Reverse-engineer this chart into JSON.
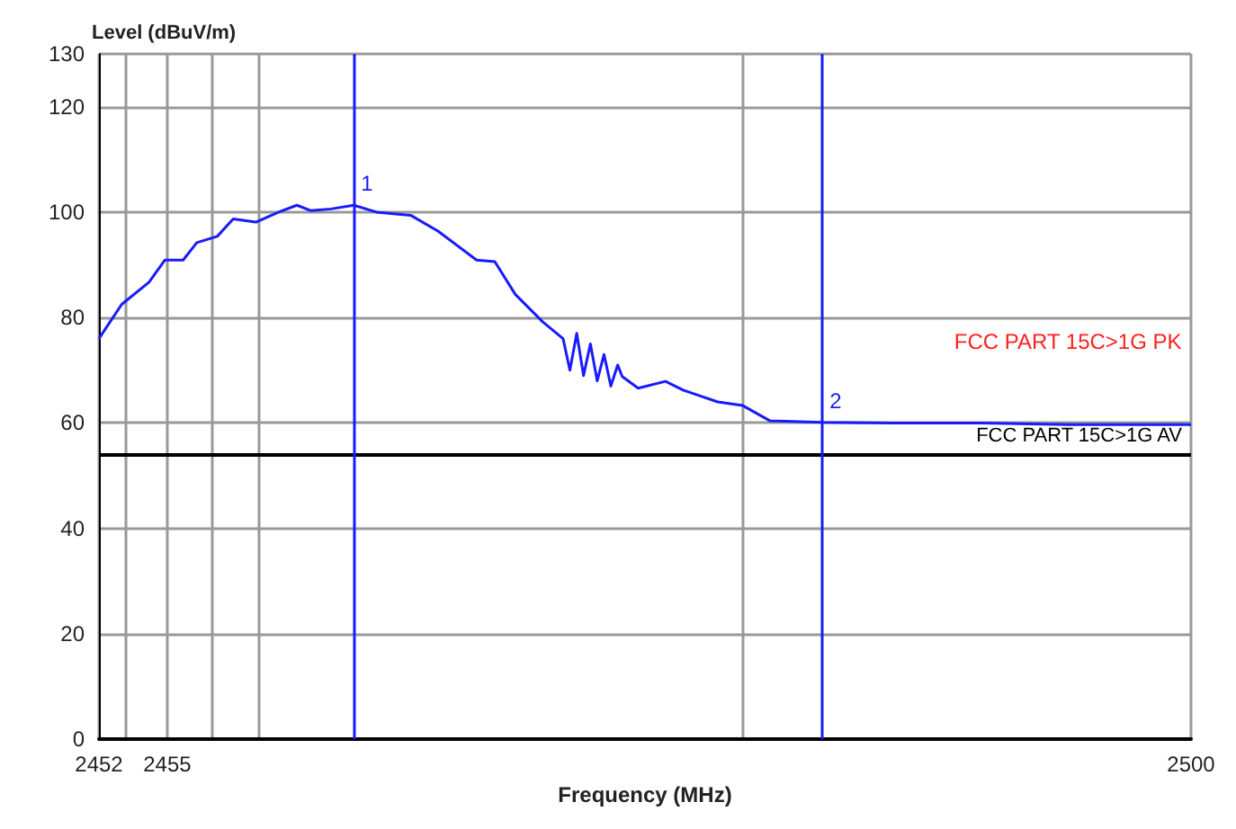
{
  "chart_data": {
    "type": "line",
    "xlabel": "Frequency (MHz)",
    "ylabel": "Level (dBuV/m)",
    "xlim": [
      2452,
      2500
    ],
    "xticks": [
      2452,
      {
        "value": 2453.2,
        "label": null
      },
      2455,
      {
        "value": 2457,
        "label": null
      },
      {
        "value": 2459,
        "label": null
      },
      {
        "value": 2480.3,
        "label": null
      },
      2500
    ],
    "ylim": [
      0,
      130
    ],
    "yticks": [
      0,
      20,
      40,
      60,
      80,
      100,
      120,
      130
    ],
    "grid": true,
    "legend": false,
    "series": [
      {
        "color": "#1a1aff",
        "x": [
          2452.0,
          2453.0,
          2454.2,
          2454.9,
          2455.7,
          2456.3,
          2457.2,
          2457.9,
          2458.9,
          2459.9,
          2460.7,
          2461.3,
          2462.2,
          2463.2,
          2464.2,
          2465.7,
          2466.9,
          2468.6,
          2469.4,
          2470.3,
          2471.5,
          2472.4,
          2472.7,
          2473.0,
          2473.3,
          2473.6,
          2473.9,
          2474.2,
          2474.5,
          2474.8,
          2475.0,
          2475.7,
          2476.9,
          2477.7,
          2479.2,
          2480.3,
          2481.5,
          2483.8,
          2486.9,
          2490.8,
          2494.6,
          2500.0
        ],
        "values": [
          76,
          82.5,
          86.7,
          90.9,
          90.9,
          94.2,
          95.4,
          98.7,
          98.1,
          100,
          101.3,
          100.3,
          100.6,
          101.3,
          100,
          99.4,
          96.4,
          90.9,
          90.6,
          84.4,
          79.2,
          76,
          70,
          77,
          69,
          75,
          68,
          73,
          67,
          71,
          68.8,
          66.6,
          67.9,
          66.2,
          64,
          63.3,
          60.4,
          60.1,
          60,
          60,
          59.7,
          59.7
        ]
      }
    ],
    "ref_lines": [
      {
        "axis": "y",
        "value": 54,
        "label": "FCC PART 15C>1G AV",
        "color": "#000000"
      },
      {
        "axis": "x",
        "value": 2463.2,
        "color": "#1a1aff"
      },
      {
        "axis": "x",
        "value": 2483.8,
        "color": "#1a1aff"
      }
    ],
    "annotations": [
      "FCC PART 15C>1G PK",
      {
        "text": "1",
        "x": 2463.2,
        "y": 101.3
      },
      {
        "text": "2",
        "x": 2483.8,
        "y": 60.1
      }
    ]
  }
}
